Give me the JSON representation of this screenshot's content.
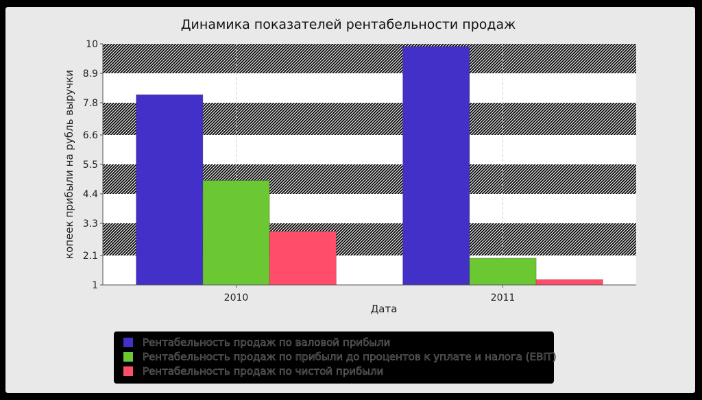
{
  "chart_data": {
    "type": "bar",
    "title": "Динамика показателей рентабельности продаж",
    "xlabel": "Дата",
    "ylabel": "копеек прибыли на рубль выручки",
    "categories": [
      "2010",
      "2011"
    ],
    "ylim": [
      1,
      10
    ],
    "yticks": [
      "1",
      "2.1",
      "3.3",
      "4.4",
      "5.5",
      "6.6",
      "7.8",
      "8.9",
      "10"
    ],
    "series": [
      {
        "name": "Рентабельность продаж по валовой прибыли",
        "color": "#4330c8",
        "values": [
          8.1,
          9.9
        ]
      },
      {
        "name": "Рентабельность продаж по прибыли до процентов к уплате и налога (EBIT)",
        "color": "#6cc832",
        "values": [
          4.9,
          2.0
        ]
      },
      {
        "name": "Рентабельность продаж по чистой прибыли",
        "color": "#ff4d6a",
        "values": [
          3.0,
          1.2
        ]
      }
    ],
    "grid": true,
    "legend_position": "bottom"
  }
}
